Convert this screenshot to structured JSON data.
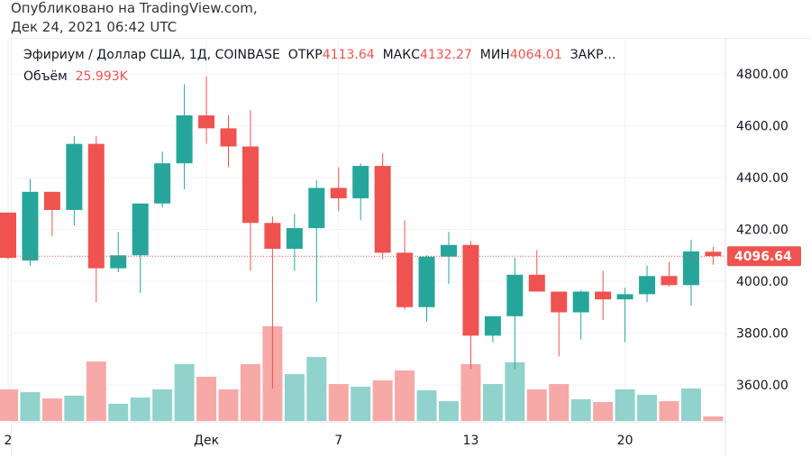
{
  "published": {
    "line1": "Опубликовано на TradingView.com,",
    "line2": "Дек 24, 2021 06:42 UTC"
  },
  "legend": {
    "symbol": "Эфириум / Доллар США, 1Д, COINBASE",
    "open_label": "ОТКР",
    "open": "4113.64",
    "high_label": "МАКС",
    "high": "4132.27",
    "low_label": "МИН",
    "low": "4064.01",
    "close_label": "ЗАКР…",
    "volume_label": "Объём",
    "volume": "25.993K"
  },
  "colors": {
    "up": "#26a69a",
    "down": "#ef5350",
    "up_vol": "#92d2cc",
    "down_vol": "#f7a9a7"
  },
  "chart_data": {
    "type": "candlestick",
    "ylim": [
      3460,
      4860
    ],
    "y_ticks": [
      "4800.00",
      "4600.00",
      "4400.00",
      "4200.00",
      "4000.00",
      "3800.00",
      "3600.00"
    ],
    "y_tick_values": [
      4800,
      4600,
      4400,
      4200,
      4000,
      3800,
      3600
    ],
    "x_ticks": [
      {
        "label": "2",
        "index": 0
      },
      {
        "label": "Дек",
        "index": 9
      },
      {
        "label": "7",
        "index": 15
      },
      {
        "label": "13",
        "index": 21
      },
      {
        "label": "20",
        "index": 28
      }
    ],
    "last_price": "4096.64",
    "last_price_value": 4096.64,
    "candles": [
      [
        4265,
        4090,
        4265,
        4085
      ],
      [
        4080,
        4345,
        4395,
        4060
      ],
      [
        4345,
        4275,
        4345,
        4175
      ],
      [
        4275,
        4530,
        4560,
        4215
      ],
      [
        4530,
        4050,
        4560,
        3920
      ],
      [
        4050,
        4100,
        4190,
        4035
      ],
      [
        4100,
        4300,
        4300,
        3955
      ],
      [
        4300,
        4455,
        4500,
        4285
      ],
      [
        4455,
        4640,
        4760,
        4355
      ],
      [
        4640,
        4590,
        4790,
        4530
      ],
      [
        4590,
        4520,
        4640,
        4440
      ],
      [
        4520,
        4225,
        4660,
        4040
      ],
      [
        4225,
        4125,
        4250,
        3585
      ],
      [
        4125,
        4205,
        4260,
        4040
      ],
      [
        4205,
        4360,
        4390,
        3920
      ],
      [
        4360,
        4320,
        4440,
        4270
      ],
      [
        4320,
        4445,
        4455,
        4235
      ],
      [
        4445,
        4110,
        4495,
        4085
      ],
      [
        4110,
        3900,
        4235,
        3890
      ],
      [
        3900,
        4095,
        4100,
        3845
      ],
      [
        4095,
        4140,
        4190,
        3990
      ],
      [
        4140,
        3790,
        4155,
        3660
      ],
      [
        3790,
        3865,
        3865,
        3765
      ],
      [
        3865,
        4025,
        4090,
        3660
      ],
      [
        4025,
        3960,
        4120,
        3960
      ],
      [
        3960,
        3880,
        3960,
        3710
      ],
      [
        3880,
        3960,
        3965,
        3775
      ],
      [
        3960,
        3930,
        4040,
        3850
      ],
      [
        3930,
        3950,
        3975,
        3765
      ],
      [
        3950,
        4020,
        4060,
        3920
      ],
      [
        4020,
        3985,
        4075,
        3980
      ],
      [
        3985,
        4115,
        4160,
        3905
      ],
      [
        4113.64,
        4096.64,
        4132.27,
        4064.01
      ]
    ],
    "volumes_k": [
      182,
      166,
      130,
      146,
      343,
      99,
      135,
      182,
      328,
      255,
      182,
      328,
      546,
      270,
      369,
      213,
      198,
      234,
      291,
      177,
      114,
      328,
      213,
      338,
      182,
      213,
      125,
      109,
      182,
      151,
      114,
      187,
      26
    ]
  }
}
